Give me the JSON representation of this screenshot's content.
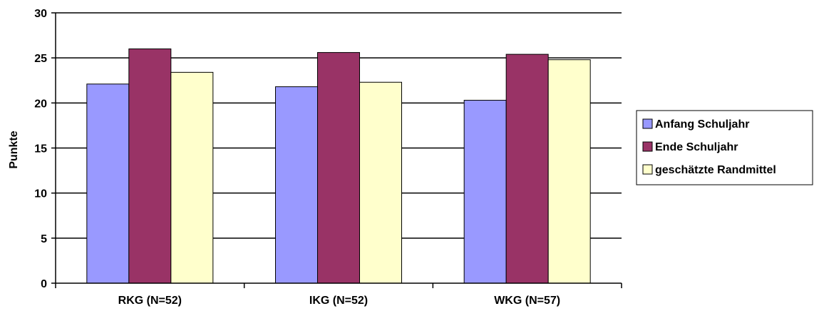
{
  "chart_data": {
    "type": "bar",
    "title": "",
    "xlabel": "",
    "ylabel": "Punkte",
    "ylim": [
      0,
      30
    ],
    "yticks": [
      0,
      5,
      10,
      15,
      20,
      25,
      30
    ],
    "grid": true,
    "legend_position": "right",
    "categories": [
      "RKG (N=52)",
      "IKG (N=52)",
      "WKG (N=57)"
    ],
    "series": [
      {
        "name": "Anfang Schuljahr",
        "color": "#9999ff",
        "values": [
          22.1,
          21.8,
          20.3
        ]
      },
      {
        "name": "Ende Schuljahr",
        "color": "#993366",
        "values": [
          26.0,
          25.6,
          25.4
        ]
      },
      {
        "name": "geschätzte Randmittel",
        "color": "#ffffcc",
        "values": [
          23.4,
          22.3,
          24.8
        ]
      }
    ]
  }
}
